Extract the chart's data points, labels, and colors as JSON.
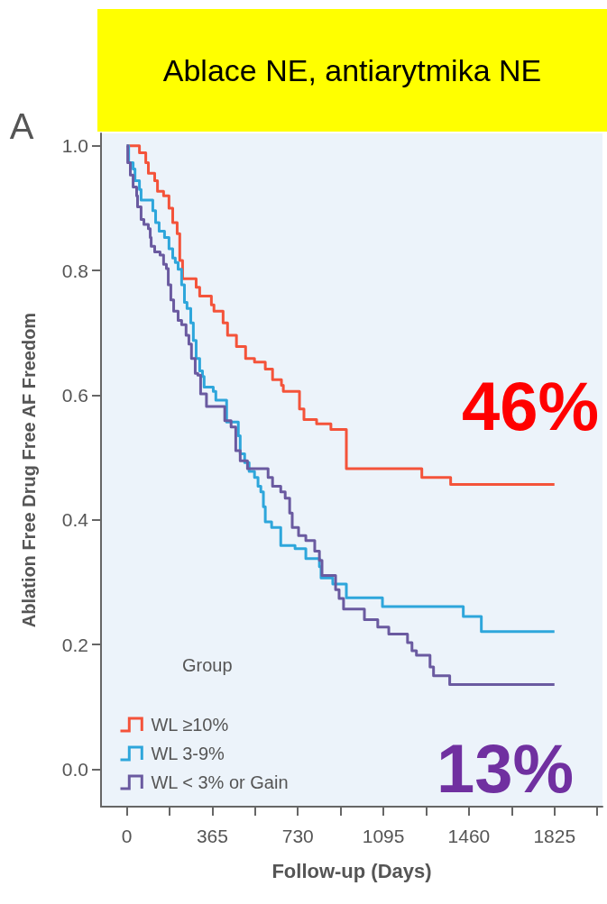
{
  "chart_data": {
    "type": "step",
    "title": "Ablace NE, antiarytmika NE",
    "xlabel": "Follow-up (Days)",
    "ylabel": "Ablation Free Drug Free AF Freedom",
    "legend_title": "Group",
    "legend": "bottom left",
    "grid": false,
    "marker": "none",
    "line_style": "solid",
    "xlim": [
      -110,
      2030
    ],
    "ylim": [
      -0.06,
      1.02
    ],
    "xticks": [
      0,
      {
        "value": 182.5,
        "label": null
      },
      365,
      {
        "value": 547.5,
        "label": null
      },
      730,
      {
        "value": 912.5,
        "label": null
      },
      1095,
      {
        "value": 1277.5,
        "label": null
      },
      1460,
      {
        "value": 1642.5,
        "label": null
      },
      1825,
      {
        "value": 2007.5,
        "label": null
      }
    ],
    "yticks": [
      {
        "value": 0,
        "label": "0.0"
      },
      {
        "value": 0.2,
        "label": "0.2"
      },
      {
        "value": 0.4,
        "label": "0.4"
      },
      {
        "value": 0.6,
        "label": "0.6"
      },
      {
        "value": 0.8,
        "label": "0.8"
      },
      {
        "value": 1,
        "label": "1.0"
      }
    ],
    "annotations": [
      "A",
      "46%",
      "13%"
    ],
    "series": [
      {
        "name": "WL ≥10%",
        "color": "#f4533a",
        "x": [
          0,
          54,
          81,
          92,
          119,
          131,
          157,
          180,
          196,
          215,
          226,
          238,
          296,
          311,
          361,
          372,
          411,
          430,
          468,
          507,
          545,
          591,
          622,
          660,
          668,
          737,
          756,
          810,
          871,
          937,
          1259,
          1382,
          1825
        ],
        "values": [
          1.0,
          0.989,
          0.973,
          0.956,
          0.944,
          0.927,
          0.92,
          0.9,
          0.877,
          0.859,
          0.816,
          0.787,
          0.773,
          0.759,
          0.745,
          0.735,
          0.716,
          0.696,
          0.678,
          0.659,
          0.653,
          0.642,
          0.625,
          0.616,
          0.606,
          0.578,
          0.561,
          0.554,
          0.545,
          0.482,
          0.468,
          0.457,
          0.457
        ]
      },
      {
        "name": "WL 3-9%",
        "color": "#2ea6db",
        "x": [
          0,
          8,
          27,
          35,
          54,
          61,
          111,
          123,
          138,
          161,
          180,
          196,
          207,
          219,
          234,
          246,
          257,
          273,
          284,
          296,
          311,
          323,
          330,
          369,
          380,
          426,
          476,
          484,
          503,
          522,
          545,
          560,
          572,
          583,
          591,
          618,
          657,
          718,
          764,
          822,
          829,
          879,
          937,
          1091,
          1436,
          1513,
          1825
        ],
        "values": [
          1.0,
          0.973,
          0.963,
          0.944,
          0.93,
          0.913,
          0.896,
          0.877,
          0.863,
          0.853,
          0.835,
          0.82,
          0.813,
          0.802,
          0.777,
          0.749,
          0.739,
          0.716,
          0.688,
          0.659,
          0.639,
          0.63,
          0.613,
          0.606,
          0.592,
          0.557,
          0.535,
          0.506,
          0.492,
          0.478,
          0.468,
          0.454,
          0.445,
          0.421,
          0.397,
          0.388,
          0.359,
          0.354,
          0.338,
          0.325,
          0.307,
          0.297,
          0.275,
          0.261,
          0.245,
          0.221,
          0.221
        ]
      },
      {
        "name": "WL < 3% or Gain",
        "color": "#6a5aa0",
        "x": [
          0,
          4,
          15,
          27,
          42,
          46,
          61,
          73,
          92,
          100,
          104,
          119,
          142,
          157,
          169,
          177,
          188,
          200,
          219,
          234,
          253,
          265,
          276,
          292,
          303,
          315,
          340,
          418,
          445,
          465,
          484,
          515,
          603,
          622,
          657,
          676,
          695,
          706,
          733,
          764,
          802,
          822,
          833,
          891,
          906,
          925,
          1014,
          1071,
          1118,
          1198,
          1217,
          1236,
          1294,
          1309,
          1378,
          1825
        ],
        "values": [
          1.0,
          0.973,
          0.953,
          0.934,
          0.92,
          0.902,
          0.882,
          0.874,
          0.867,
          0.853,
          0.839,
          0.83,
          0.825,
          0.81,
          0.803,
          0.777,
          0.753,
          0.735,
          0.72,
          0.713,
          0.696,
          0.682,
          0.659,
          0.635,
          0.632,
          0.602,
          0.582,
          0.559,
          0.549,
          0.511,
          0.495,
          0.482,
          0.468,
          0.454,
          0.445,
          0.435,
          0.411,
          0.388,
          0.375,
          0.367,
          0.35,
          0.335,
          0.311,
          0.288,
          0.274,
          0.257,
          0.24,
          0.228,
          0.217,
          0.203,
          0.19,
          0.183,
          0.164,
          0.15,
          0.136,
          0.136
        ]
      }
    ]
  }
}
